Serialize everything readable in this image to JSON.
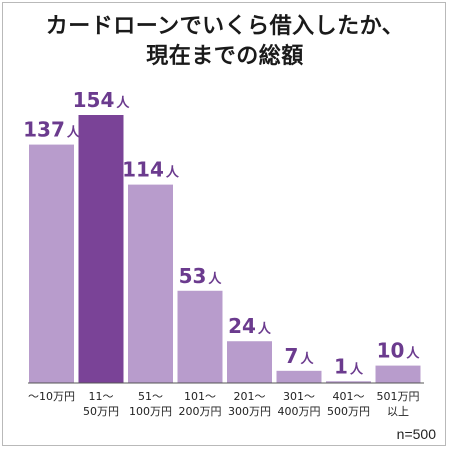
{
  "title_lines": [
    "カードローンでいくら借入したか、",
    "現在までの総額"
  ],
  "note": "n=500",
  "chart_data": {
    "type": "bar",
    "title": "カードローンでいくら借入したか、現在までの総額",
    "categories": [
      [
        "～10万円"
      ],
      [
        "11～",
        "50万円"
      ],
      [
        "51～",
        "100万円"
      ],
      [
        "101～",
        "200万円"
      ],
      [
        "201～",
        "300万円"
      ],
      [
        "301～",
        "400万円"
      ],
      [
        "401～",
        "500万円"
      ],
      [
        "501万円",
        "以上"
      ]
    ],
    "values": [
      137,
      154,
      114,
      53,
      24,
      7,
      1,
      10
    ],
    "unit": "人",
    "highlight_index": 1,
    "ylim": [
      0,
      154
    ],
    "colors": {
      "bar": "#b89ccc",
      "highlight": "#7a4397",
      "label": "#6b3b8e"
    }
  }
}
